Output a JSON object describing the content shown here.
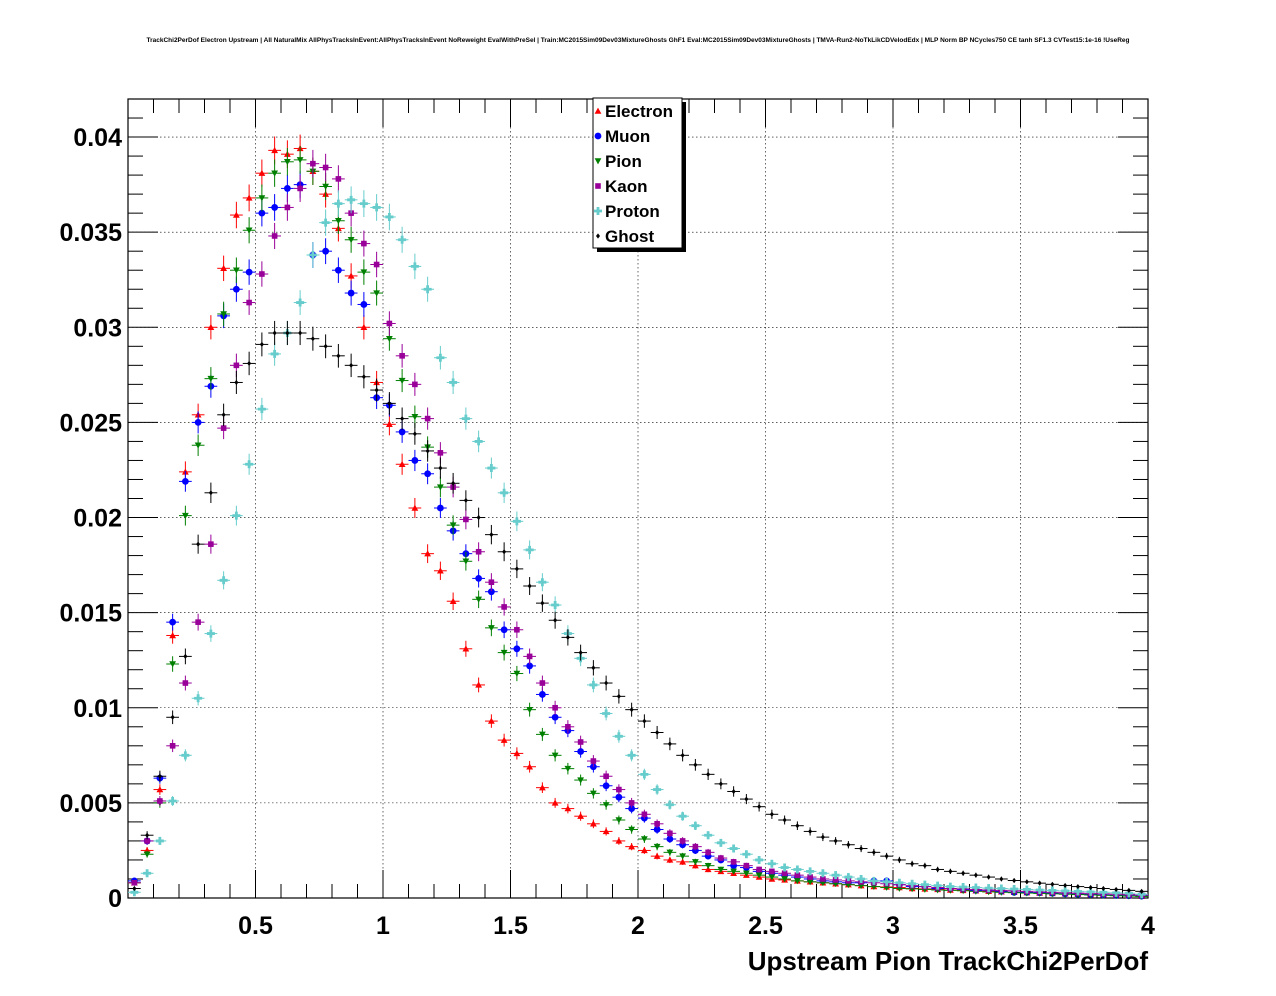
{
  "chart_data": {
    "type": "scatter",
    "title": "TrackChi2PerDof Electron Upstream | All NaturalMix AllPhysTracksInEvent:AllPhysTracksInEvent NoReweight EvalWithPreSel | Train:MC2015Sim09Dev03MixtureGhosts GhF1 Eval:MC2015Sim09Dev03MixtureGhosts | TMVA-Run2-NoTkLikCDVelodEdx | MLP Norm BP NCycles750 CE tanh SF1.3 CVTest15:1e-16 !UseReg",
    "xlabel": "Upstream Pion TrackChi2PerDof",
    "ylabel": "",
    "xlim": [
      0,
      4
    ],
    "ylim": [
      0,
      0.042
    ],
    "grid": true,
    "legend_position": "top-center",
    "x_ticks": [
      0.5,
      1,
      1.5,
      2,
      2.5,
      3,
      3.5,
      4
    ],
    "x_tick_labels": [
      "0.5",
      "1",
      "1.5",
      "2",
      "2.5",
      "3",
      "3.5",
      "4"
    ],
    "y_ticks": [
      0,
      0.005,
      0.01,
      0.015,
      0.02,
      0.025,
      0.03,
      0.035,
      0.04
    ],
    "y_tick_labels": [
      "0",
      "0.005",
      "0.01",
      "0.015",
      "0.02",
      "0.025",
      "0.03",
      "0.035",
      "0.04"
    ],
    "bin_width": 0.05,
    "x": [
      0.025,
      0.075,
      0.125,
      0.175,
      0.225,
      0.275,
      0.325,
      0.375,
      0.425,
      0.475,
      0.525,
      0.575,
      0.625,
      0.675,
      0.725,
      0.775,
      0.825,
      0.875,
      0.925,
      0.975,
      1.025,
      1.075,
      1.125,
      1.175,
      1.225,
      1.275,
      1.325,
      1.375,
      1.425,
      1.475,
      1.525,
      1.575,
      1.625,
      1.675,
      1.725,
      1.775,
      1.825,
      1.875,
      1.925,
      1.975,
      2.025,
      2.075,
      2.125,
      2.175,
      2.225,
      2.275,
      2.325,
      2.375,
      2.425,
      2.475,
      2.525,
      2.575,
      2.625,
      2.675,
      2.725,
      2.775,
      2.825,
      2.875,
      2.925,
      2.975,
      3.025,
      3.075,
      3.125,
      3.175,
      3.225,
      3.275,
      3.325,
      3.375,
      3.425,
      3.475,
      3.525,
      3.575,
      3.625,
      3.675,
      3.725,
      3.775,
      3.825,
      3.875,
      3.925,
      3.975
    ],
    "series": [
      {
        "name": "Electron",
        "color": "#ff0000",
        "marker": "triangle-up",
        "values": [
          0.0008,
          0.0025,
          0.0057,
          0.0138,
          0.0224,
          0.0254,
          0.03,
          0.0331,
          0.0359,
          0.0368,
          0.0381,
          0.0393,
          0.0391,
          0.0394,
          0.0382,
          0.037,
          0.0352,
          0.0327,
          0.03,
          0.0271,
          0.0249,
          0.0228,
          0.0205,
          0.0181,
          0.0172,
          0.0156,
          0.0131,
          0.0112,
          0.0093,
          0.0083,
          0.0076,
          0.0069,
          0.0058,
          0.005,
          0.0047,
          0.0043,
          0.0039,
          0.0035,
          0.003,
          0.0027,
          0.0025,
          0.0022,
          0.002,
          0.0019,
          0.0017,
          0.0015,
          0.0014,
          0.0013,
          0.0012,
          0.0011,
          0.001,
          0.00095,
          0.0009,
          0.00085,
          0.0008,
          0.00075,
          0.0007,
          0.00065,
          0.0006,
          0.00058,
          0.00055,
          0.0005,
          0.00048,
          0.00045,
          0.00042,
          0.0004,
          0.00038,
          0.00035,
          0.00033,
          0.0003,
          0.00028,
          0.00026,
          0.00024,
          0.00022,
          0.0002,
          0.00018,
          0.00016,
          0.00014,
          0.00012,
          0.0001
        ]
      },
      {
        "name": "Muon",
        "color": "#0000ff",
        "marker": "circle",
        "values": [
          0.0009,
          0.003,
          0.0063,
          0.0145,
          0.0219,
          0.025,
          0.0269,
          0.0306,
          0.032,
          0.0329,
          0.036,
          0.0363,
          0.0373,
          0.0375,
          0.0338,
          0.034,
          0.033,
          0.0318,
          0.0312,
          0.0263,
          0.0259,
          0.0245,
          0.023,
          0.0223,
          0.0205,
          0.0193,
          0.0181,
          0.0168,
          0.0161,
          0.0141,
          0.0131,
          0.0122,
          0.0107,
          0.0095,
          0.0088,
          0.0077,
          0.0069,
          0.0059,
          0.0053,
          0.0047,
          0.0042,
          0.0036,
          0.0031,
          0.0028,
          0.0025,
          0.0022,
          0.002,
          0.0017,
          0.0016,
          0.0014,
          0.0013,
          0.0012,
          0.0011,
          0.001,
          0.0009,
          0.00085,
          0.0008,
          0.0008,
          0.0009,
          0.0009,
          0.0007,
          0.0006,
          0.0006,
          0.0005,
          0.0005,
          0.00045,
          0.0004,
          0.0004,
          0.00035,
          0.0003,
          0.0003,
          0.00028,
          0.00025,
          0.00022,
          0.0002,
          0.00018,
          0.00016,
          0.00014,
          0.00012,
          0.0001
        ]
      },
      {
        "name": "Pion",
        "color": "#008000",
        "marker": "triangle-down",
        "values": [
          0.0008,
          0.0023,
          0.005,
          0.0123,
          0.0201,
          0.0238,
          0.0273,
          0.0307,
          0.033,
          0.0351,
          0.0368,
          0.0381,
          0.0387,
          0.0388,
          0.0382,
          0.0374,
          0.0356,
          0.0346,
          0.0329,
          0.0318,
          0.0294,
          0.0272,
          0.0253,
          0.0237,
          0.0216,
          0.0196,
          0.0177,
          0.0157,
          0.0142,
          0.0129,
          0.0118,
          0.0099,
          0.0086,
          0.0075,
          0.0068,
          0.0062,
          0.0055,
          0.0049,
          0.0041,
          0.0036,
          0.0031,
          0.0027,
          0.0024,
          0.0022,
          0.0019,
          0.0017,
          0.0015,
          0.0014,
          0.0013,
          0.0012,
          0.0011,
          0.001,
          0.0009,
          0.00085,
          0.0008,
          0.00075,
          0.0007,
          0.00065,
          0.0006,
          0.00055,
          0.0005,
          0.00048,
          0.00045,
          0.00042,
          0.0004,
          0.00038,
          0.00035,
          0.00032,
          0.0003,
          0.00028,
          0.00026,
          0.00024,
          0.00022,
          0.0002,
          0.00018,
          0.00016,
          0.00014,
          0.00012,
          0.0001,
          8e-05
        ]
      },
      {
        "name": "Kaon",
        "color": "#990099",
        "marker": "square",
        "values": [
          0.0008,
          0.003,
          0.0051,
          0.008,
          0.0113,
          0.0145,
          0.0186,
          0.0247,
          0.028,
          0.0313,
          0.0328,
          0.0348,
          0.0363,
          0.0373,
          0.0386,
          0.0384,
          0.0378,
          0.036,
          0.0344,
          0.0333,
          0.0302,
          0.0285,
          0.027,
          0.0252,
          0.0234,
          0.0216,
          0.0199,
          0.0182,
          0.0166,
          0.0153,
          0.0141,
          0.0127,
          0.0113,
          0.01,
          0.009,
          0.0082,
          0.0072,
          0.0064,
          0.0057,
          0.005,
          0.0044,
          0.0039,
          0.0034,
          0.003,
          0.0027,
          0.0024,
          0.0021,
          0.0019,
          0.0017,
          0.0015,
          0.0014,
          0.0013,
          0.0012,
          0.0011,
          0.001,
          0.00095,
          0.0009,
          0.00085,
          0.0008,
          0.00075,
          0.0007,
          0.00065,
          0.0006,
          0.00055,
          0.0005,
          0.00048,
          0.00045,
          0.00042,
          0.0004,
          0.00038,
          0.00035,
          0.00032,
          0.0003,
          0.00028,
          0.00026,
          0.00024,
          0.00022,
          0.0002,
          0.00018,
          0.00015
        ]
      },
      {
        "name": "Proton",
        "color": "#66cccc",
        "marker": "cross",
        "values": [
          0.0003,
          0.0013,
          0.003,
          0.0051,
          0.0075,
          0.0105,
          0.0139,
          0.0167,
          0.0201,
          0.0228,
          0.0257,
          0.0286,
          0.0297,
          0.0313,
          0.0338,
          0.0355,
          0.0365,
          0.0367,
          0.0365,
          0.0363,
          0.0358,
          0.0346,
          0.0332,
          0.032,
          0.0284,
          0.0271,
          0.0252,
          0.024,
          0.0226,
          0.0213,
          0.0198,
          0.0183,
          0.0166,
          0.0154,
          0.0139,
          0.0126,
          0.0112,
          0.0097,
          0.0085,
          0.0075,
          0.0065,
          0.0057,
          0.0049,
          0.0043,
          0.0038,
          0.0033,
          0.0029,
          0.0026,
          0.0023,
          0.002,
          0.0018,
          0.0016,
          0.0015,
          0.0014,
          0.0013,
          0.0012,
          0.0011,
          0.001,
          0.0009,
          0.00085,
          0.0008,
          0.00075,
          0.0007,
          0.00065,
          0.0006,
          0.00058,
          0.00055,
          0.00052,
          0.0005,
          0.00047,
          0.00045,
          0.00042,
          0.0004,
          0.00037,
          0.00035,
          0.00032,
          0.0003,
          0.00027,
          0.00025,
          0.0002
        ]
      },
      {
        "name": "Ghost",
        "color": "#000000",
        "marker": "diamond",
        "values": [
          0.0005,
          0.0033,
          0.0064,
          0.0095,
          0.0127,
          0.0186,
          0.0213,
          0.0254,
          0.0271,
          0.0281,
          0.0291,
          0.0297,
          0.0297,
          0.0297,
          0.0294,
          0.029,
          0.0285,
          0.028,
          0.0274,
          0.0267,
          0.026,
          0.0252,
          0.0244,
          0.0235,
          0.0226,
          0.0218,
          0.0209,
          0.02,
          0.0191,
          0.0182,
          0.0173,
          0.0164,
          0.0155,
          0.0146,
          0.0137,
          0.0129,
          0.0121,
          0.0113,
          0.0106,
          0.0099,
          0.0093,
          0.0087,
          0.0081,
          0.0075,
          0.007,
          0.0065,
          0.006,
          0.0056,
          0.0052,
          0.0048,
          0.0044,
          0.0041,
          0.0038,
          0.0035,
          0.0032,
          0.003,
          0.0028,
          0.0026,
          0.0024,
          0.0022,
          0.002,
          0.0018,
          0.0017,
          0.0015,
          0.0014,
          0.0013,
          0.0012,
          0.0011,
          0.001,
          0.00092,
          0.00085,
          0.00078,
          0.00072,
          0.00066,
          0.0006,
          0.00055,
          0.0005,
          0.00045,
          0.0004,
          0.00035
        ]
      }
    ]
  }
}
